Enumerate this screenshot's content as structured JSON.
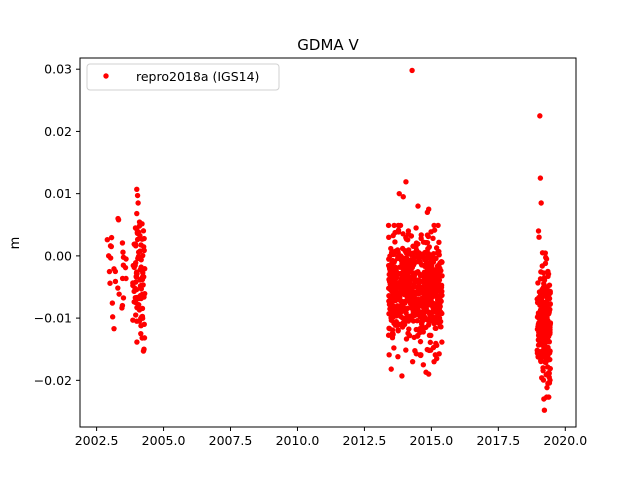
{
  "chart_data": {
    "type": "scatter",
    "title": "GDMA V",
    "xlabel": "",
    "ylabel": "m",
    "xlim": [
      2001.88,
      2020.4
    ],
    "ylim": [
      -0.0275,
      0.0318
    ],
    "xticks": [
      2002.5,
      2005.0,
      2007.5,
      2010.0,
      2012.5,
      2015.0,
      2017.5,
      2020.0
    ],
    "xtick_labels": [
      "2002.5",
      "2005.0",
      "2007.5",
      "2010.0",
      "2012.5",
      "2015.0",
      "2017.5",
      "2020.0"
    ],
    "yticks": [
      -0.02,
      -0.01,
      0.0,
      0.01,
      0.02,
      0.03
    ],
    "ytick_labels": [
      "−0.02",
      "−0.01",
      "0.00",
      "0.01",
      "0.02",
      "0.03"
    ],
    "grid": false,
    "legend_position": "top-left",
    "series": [
      {
        "name": "repro2018a (IGS14)",
        "color": "#ff0000",
        "marker": "circle",
        "clusters": [
          {
            "x_range": [
              2002.85,
              2003.6
            ],
            "y_center": -0.002,
            "y_spread": 0.004,
            "count": 18
          },
          {
            "x_range": [
              2003.85,
              2004.3
            ],
            "y_center": -0.003,
            "y_spread": 0.0045,
            "count": 80
          },
          {
            "x_range": [
              2013.4,
              2015.4
            ],
            "y_center": -0.0055,
            "y_spread": 0.004,
            "count": 700
          },
          {
            "x_range": [
              2018.95,
              2019.45
            ],
            "y_center": -0.011,
            "y_spread": 0.0045,
            "count": 220
          }
        ],
        "points": [
          [
            2002.9,
            0.0026
          ],
          [
            2002.95,
            0.0
          ],
          [
            2003.0,
            -0.0044
          ],
          [
            2003.05,
            0.0015
          ],
          [
            2003.1,
            -0.0098
          ],
          [
            2003.15,
            -0.0117
          ],
          [
            2003.3,
            0.006
          ],
          [
            2003.32,
            0.0058
          ],
          [
            2003.5,
            -0.0015
          ],
          [
            2003.6,
            -0.0005
          ],
          [
            2003.2,
            -0.0025
          ],
          [
            2004.0,
            0.0107
          ],
          [
            2004.03,
            0.0097
          ],
          [
            2004.05,
            0.0085
          ],
          [
            2004.0,
            0.0068
          ],
          [
            2004.1,
            0.0048
          ],
          [
            2004.2,
            -0.0132
          ],
          [
            2004.25,
            -0.0153
          ],
          [
            2004.27,
            -0.015
          ],
          [
            2004.0,
            -0.0105
          ],
          [
            2004.1,
            -0.0105
          ],
          [
            2004.15,
            -0.0125
          ],
          [
            2014.28,
            0.0298
          ],
          [
            2013.8,
            0.01
          ],
          [
            2013.95,
            0.0095
          ],
          [
            2014.05,
            0.0119
          ],
          [
            2014.5,
            0.008
          ],
          [
            2014.9,
            0.0075
          ],
          [
            2014.85,
            0.007
          ],
          [
            2013.5,
            -0.0182
          ],
          [
            2013.75,
            -0.0162
          ],
          [
            2013.9,
            -0.0193
          ],
          [
            2014.3,
            -0.017
          ],
          [
            2014.7,
            -0.0175
          ],
          [
            2014.8,
            -0.0187
          ],
          [
            2014.9,
            -0.019
          ],
          [
            2015.1,
            -0.017
          ],
          [
            2015.2,
            -0.0165
          ],
          [
            2014.6,
            -0.016
          ],
          [
            2013.6,
            -0.0148
          ],
          [
            2019.05,
            0.0225
          ],
          [
            2019.07,
            0.0125
          ],
          [
            2019.1,
            0.0085
          ],
          [
            2019.0,
            0.004
          ],
          [
            2019.02,
            0.003
          ],
          [
            2019.15,
            0.0005
          ],
          [
            2019.3,
            -0.0005
          ],
          [
            2019.35,
            -0.0025
          ],
          [
            2019.2,
            -0.023
          ],
          [
            2019.22,
            -0.0248
          ],
          [
            2019.35,
            -0.0205
          ],
          [
            2019.4,
            -0.0195
          ]
        ]
      }
    ]
  }
}
